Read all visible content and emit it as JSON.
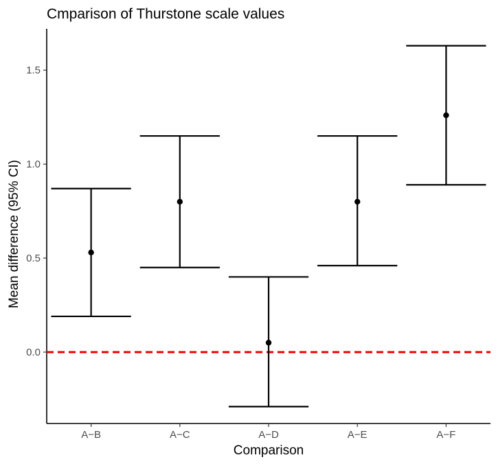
{
  "chart_data": {
    "type": "errorbar",
    "title": "Cmparison of Thurstone scale values",
    "xlabel": "Comparison",
    "ylabel": "Mean difference (95% CI)",
    "categories": [
      "A−B",
      "A−C",
      "A−D",
      "A−E",
      "A−F"
    ],
    "series": [
      {
        "values": [
          0.53,
          0.8,
          0.05,
          0.8,
          1.26
        ],
        "lower": [
          0.19,
          0.45,
          -0.29,
          0.46,
          0.89
        ],
        "upper": [
          0.87,
          1.15,
          0.4,
          1.15,
          1.63
        ]
      }
    ],
    "reference_line": {
      "y": 0.0,
      "color": "#ee0000",
      "style": "dashed"
    },
    "yticks": [
      "0.0",
      "0.5",
      "1.0",
      "1.5"
    ],
    "ytick_values": [
      0.0,
      0.5,
      1.0,
      1.5
    ],
    "ylim": [
      -0.38,
      1.72
    ],
    "grid": false,
    "colors": {
      "errorbar": "#000000",
      "point": "#000000",
      "reference": "#ee0000"
    }
  }
}
